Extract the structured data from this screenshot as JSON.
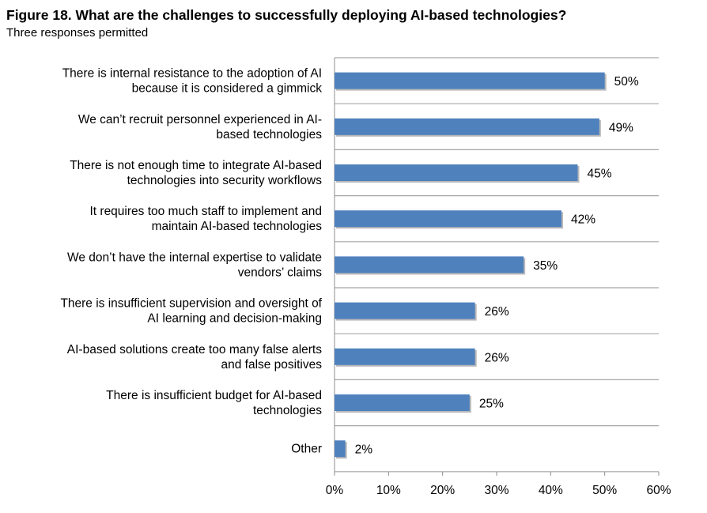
{
  "chart_data": {
    "type": "bar",
    "orientation": "horizontal",
    "title": "Figure 18. What are the challenges to successfully deploying AI-based technologies?",
    "subtitle": "Three responses permitted",
    "categories": [
      [
        "There is internal resistance to the adoption of AI",
        "because it is considered a gimmick"
      ],
      [
        "We can’t recruit personnel experienced in AI-",
        "based technologies"
      ],
      [
        "There is not enough time to integrate AI-based",
        "technologies into security workflows"
      ],
      [
        "It requires too much staff to implement and",
        "maintain AI-based technologies"
      ],
      [
        "We don’t have the internal expertise to validate",
        "vendors’ claims"
      ],
      [
        "There is insufficient supervision and oversight of",
        "AI learning and decision-making"
      ],
      [
        "AI-based solutions create too many false alerts",
        "and false positives"
      ],
      [
        "There is insufficient budget for AI-based",
        "technologies"
      ],
      [
        "Other"
      ]
    ],
    "values": [
      50,
      49,
      45,
      42,
      35,
      26,
      26,
      25,
      2
    ],
    "value_labels": [
      "50%",
      "49%",
      "45%",
      "42%",
      "35%",
      "26%",
      "26%",
      "25%",
      "2%"
    ],
    "xlim": [
      0,
      60
    ],
    "xticks": [
      0,
      10,
      20,
      30,
      40,
      50,
      60
    ],
    "xtick_labels": [
      "0%",
      "10%",
      "20%",
      "30%",
      "40%",
      "50%",
      "60%"
    ],
    "bar_color": "#4f81bd",
    "grid": "horizontal separators between categories",
    "legend": "none"
  }
}
